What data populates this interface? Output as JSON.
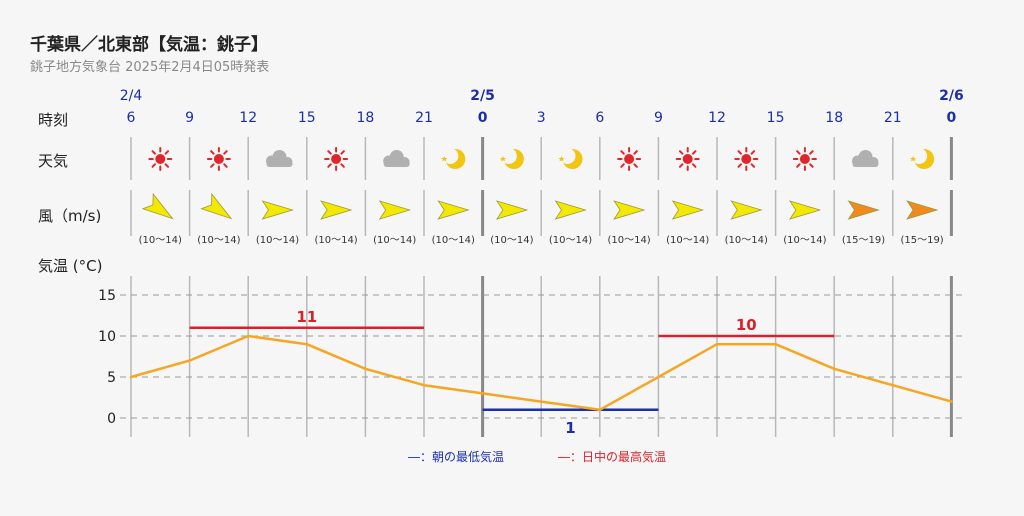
{
  "header": {
    "title": "千葉県／北東部【気温：銚子】",
    "subtitle": "銚子地方気象台 2025年2月4日05時発表"
  },
  "row_labels": {
    "time": "時刻",
    "weather": "天気",
    "wind": "風（m/s)",
    "temp": "気温 (°C)"
  },
  "colors": {
    "day_marker": "#1a2fa6",
    "line": "#f5a623",
    "max_line": "#d9212c",
    "min_line": "#1a2fb0",
    "sun": "#e0262b",
    "moon": "#f2c511",
    "cloud": "#b0b0b0",
    "wind_normal": "#f2e800",
    "wind_strong": "#f08a1c"
  },
  "timeline": {
    "date_labels": [
      "2/4",
      "2/5",
      "2/6"
    ],
    "hours": [
      "6",
      "9",
      "12",
      "15",
      "18",
      "21",
      "0",
      "3",
      "6",
      "9",
      "12",
      "15",
      "18",
      "21",
      "0"
    ],
    "bold_hour_index": [
      6,
      14
    ]
  },
  "weather": [
    "sun-icon",
    "sun-icon",
    "cloud-icon",
    "sun-icon",
    "cloud-icon",
    "moon-icon",
    "moon-icon",
    "moon-icon",
    "sun-icon",
    "sun-icon",
    "sun-icon",
    "sun-icon",
    "cloud-icon",
    "moon-icon"
  ],
  "wind": {
    "ranges": [
      "(10〜14)",
      "(10〜14)",
      "(10〜14)",
      "(10〜14)",
      "(10〜14)",
      "(10〜14)",
      "(10〜14)",
      "(10〜14)",
      "(10〜14)",
      "(10〜14)",
      "(10〜14)",
      "(10〜14)",
      "(15〜19)",
      "(15〜19)"
    ],
    "direction": [
      "NE",
      "NE",
      "E",
      "E",
      "E",
      "E",
      "E",
      "E",
      "E",
      "E",
      "E",
      "E",
      "E",
      "E"
    ],
    "strength": [
      "normal",
      "normal",
      "normal",
      "normal",
      "normal",
      "normal",
      "normal",
      "normal",
      "normal",
      "normal",
      "normal",
      "normal",
      "strong",
      "strong"
    ]
  },
  "chart_data": {
    "type": "line",
    "ylabel": "気温 (°C)",
    "ylim": [
      -2,
      17
    ],
    "yticks": [
      0,
      5,
      10,
      15
    ],
    "x": [
      "2/4 6",
      "2/4 9",
      "2/4 12",
      "2/4 15",
      "2/4 18",
      "2/4 21",
      "2/5 0",
      "2/5 3",
      "2/5 6",
      "2/5 9",
      "2/5 12",
      "2/5 15",
      "2/5 18",
      "2/5 21",
      "2/6 0"
    ],
    "series": [
      {
        "values": [
          5,
          7,
          10,
          9,
          6,
          4,
          3,
          2,
          1,
          5,
          9,
          9,
          6,
          4,
          2
        ]
      }
    ],
    "max_temps": [
      {
        "label": "11",
        "value": 11,
        "from": 1,
        "to": 5
      },
      {
        "label": "10",
        "value": 10,
        "from": 9,
        "to": 12
      }
    ],
    "min_temps": [
      {
        "label": "1",
        "value": 1,
        "from": 6,
        "to": 9
      }
    ],
    "grid": true,
    "legend": [
      {
        "text": "―：朝の最低気温",
        "color": "#1a2fb0"
      },
      {
        "text": "―：日中の最高気温",
        "color": "#d9212c"
      }
    ],
    "legend_placement": "bottom"
  }
}
